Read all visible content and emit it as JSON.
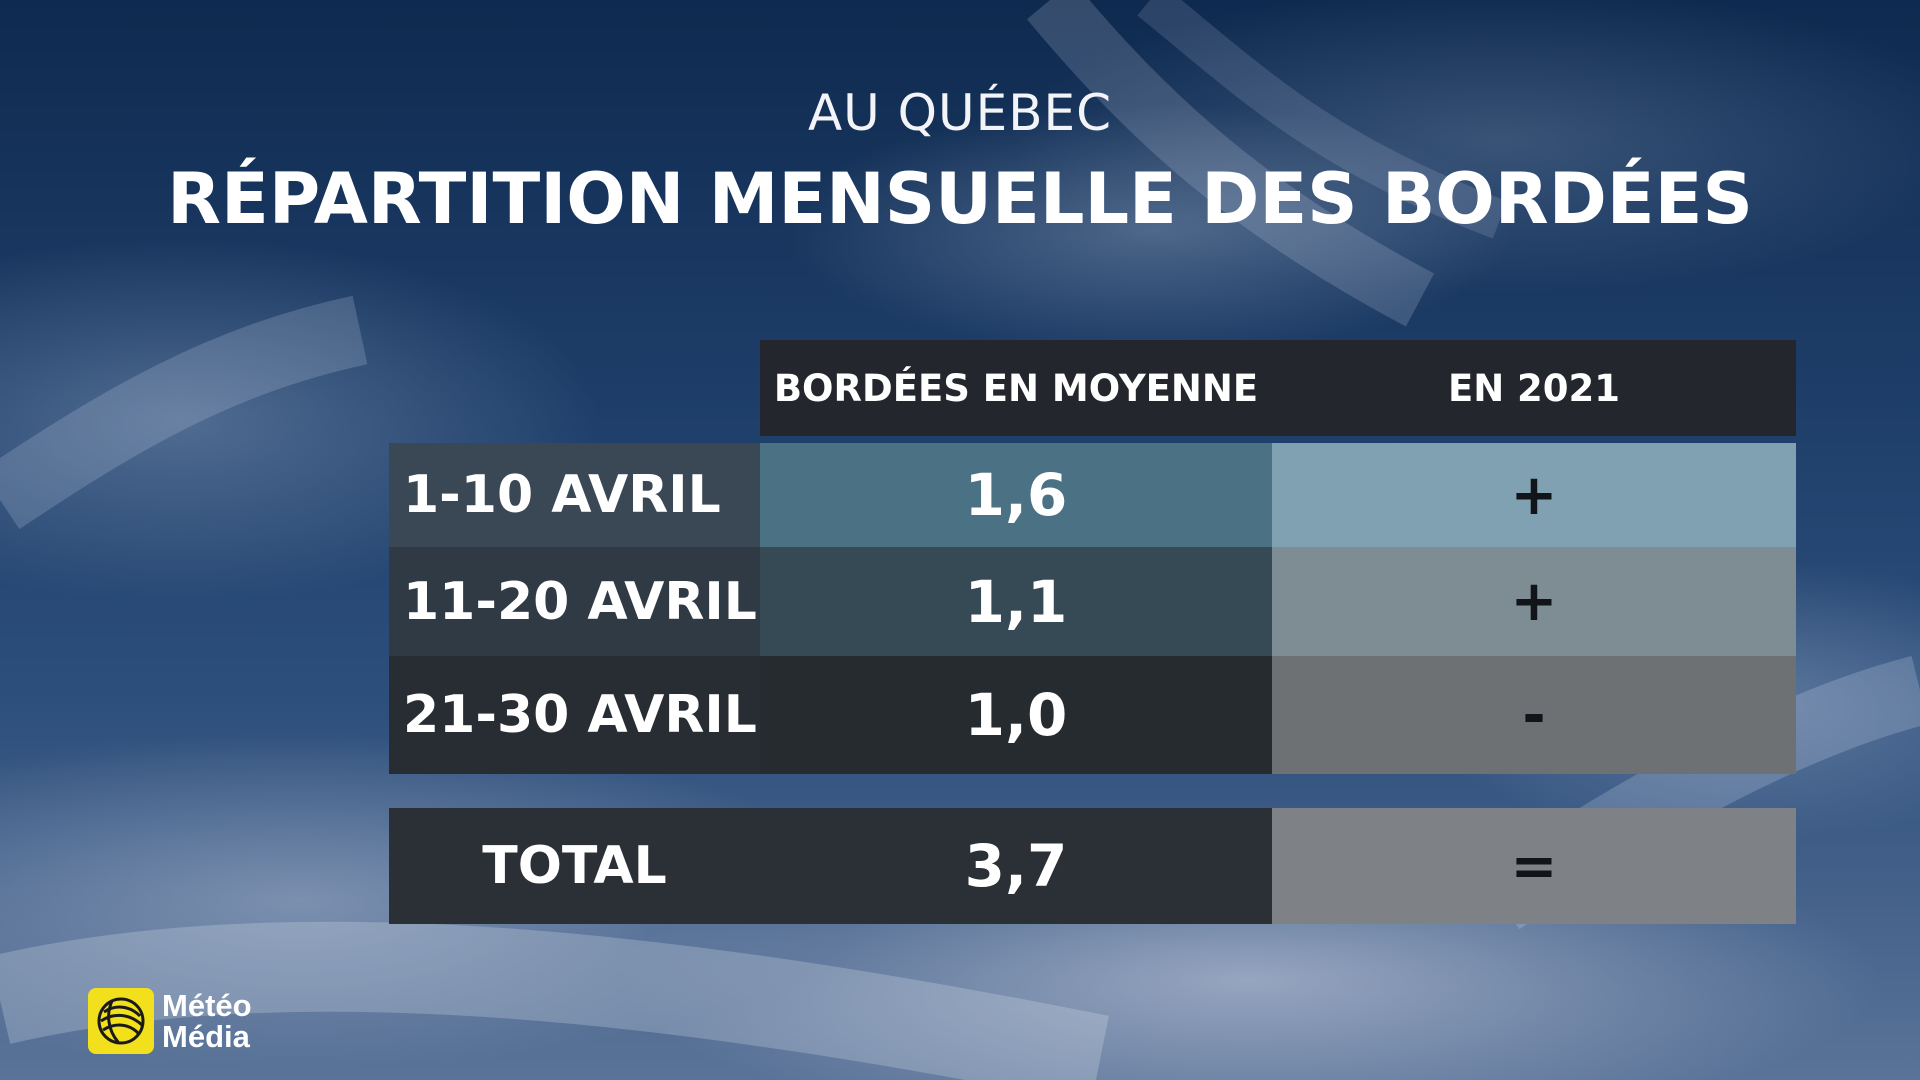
{
  "header": {
    "subtitle": "AU QUÉBEC",
    "title": "RÉPARTITION MENSUELLE DES BORDÉES"
  },
  "table": {
    "columns": [
      "BORDÉES EN MOYENNE",
      "EN 2021"
    ],
    "rows": [
      {
        "label": "1-10 AVRIL",
        "average": "1,6",
        "in_2021": "+"
      },
      {
        "label": "11-20 AVRIL",
        "average": "1,1",
        "in_2021": "+"
      },
      {
        "label": "21-30 AVRIL",
        "average": "1,0",
        "in_2021": "-"
      }
    ],
    "total": {
      "label": "TOTAL",
      "average": "3,7",
      "in_2021": "="
    }
  },
  "logo": {
    "line1": "Météo",
    "line2": "Média",
    "icon": "globe-icon",
    "color": "#f3e01c"
  },
  "colors": {
    "header_bg": "#23272d",
    "row1_value_bg": "#4b7284",
    "row1_2021_bg": "#7fa1b1"
  }
}
